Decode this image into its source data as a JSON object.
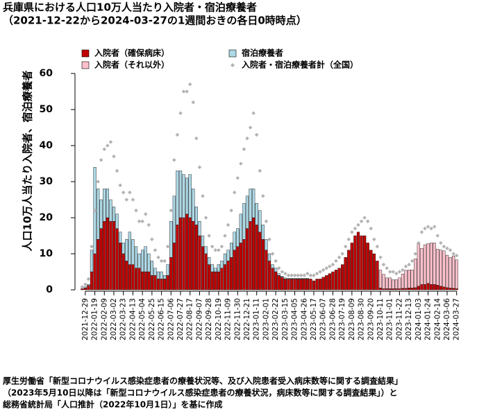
{
  "chart_data": {
    "type": "bar",
    "stacked": true,
    "title": "兵庫県における人口10万人当たり入院者・宿泊療養者",
    "subtitle": "（2021-12-22から2024-03-27の1週間おきの各日0時時点）",
    "y_label": "人口10万人当たり入院者、宿泊療養者",
    "source": [
      "厚生労働省「新型コロナウイルス感染症患者の療養状況等、及び入院患者受入病床数等に関する調査結果」",
      "（2023年5月10日以降は「新型コロナウイルス感染症患者の療養状況，病床数等に関する調査結果」）と",
      "総務省統計局「人口推計（2022年10月1日）」を基に作成"
    ],
    "legend": "top",
    "ylim": [
      0,
      60
    ],
    "yticks": [
      0,
      10,
      20,
      30,
      40,
      50,
      60
    ],
    "categories": [
      null,
      "2021-12-29",
      null,
      null,
      "2022-01-19",
      null,
      null,
      "2022-02-09",
      null,
      null,
      "2022-03-02",
      null,
      null,
      "2022-03-23",
      null,
      null,
      "2022-04-13",
      null,
      null,
      "2022-05-04",
      null,
      null,
      "2022-05-25",
      null,
      null,
      "2022-06-15",
      null,
      null,
      "2022-07-06",
      null,
      null,
      "2022-07-27",
      null,
      null,
      "2022-08-17",
      null,
      null,
      "2022-09-07",
      null,
      null,
      "2022-09-28",
      null,
      null,
      "2022-10-19",
      null,
      null,
      "2022-11-09",
      null,
      null,
      "2022-11-30",
      null,
      null,
      "2022-12-21",
      null,
      null,
      "2023-01-11",
      null,
      null,
      "2023-02-01",
      null,
      null,
      "2023-02-22",
      null,
      null,
      "2023-03-15",
      null,
      null,
      "2023-04-05",
      null,
      null,
      "2023-04-26",
      null,
      null,
      "2023-05-17",
      null,
      null,
      "2023-06-07",
      null,
      null,
      "2023-06-28",
      null,
      null,
      "2023-07-19",
      null,
      null,
      "2023-08-09",
      null,
      null,
      "2023-08-30",
      null,
      null,
      "2023-09-20",
      null,
      null,
      "2023-10-11",
      null,
      null,
      "2023-11-01",
      null,
      null,
      "2023-11-22",
      null,
      null,
      "2023-12-13",
      null,
      null,
      "2024-01-03",
      null,
      null,
      "2024-01-24",
      null,
      null,
      "2024-02-14",
      null,
      null,
      "2024-03-06",
      null,
      null,
      "2024-03-27"
    ],
    "series": [
      {
        "name": "入院者（確保病床）",
        "type": "bar",
        "color": "#c00000",
        "values": [
          0.3,
          0.5,
          1.2,
          5,
          10,
          14,
          17,
          19,
          20,
          19,
          19,
          17,
          13,
          10,
          8,
          7,
          7,
          6,
          6,
          5,
          5,
          5,
          4,
          4,
          3,
          3,
          3,
          4,
          9,
          13,
          18,
          20,
          20,
          21,
          20,
          19,
          18,
          15,
          12,
          10,
          7,
          5,
          5,
          5,
          6,
          7,
          8,
          9,
          11,
          12,
          13,
          14,
          17,
          19,
          20,
          18,
          16,
          14,
          11,
          8,
          6,
          5,
          4,
          3.5,
          3,
          3,
          3,
          3,
          3,
          3,
          3,
          3,
          3,
          2.5,
          3,
          3,
          3.5,
          4,
          4.5,
          5,
          5.5,
          6,
          7,
          9,
          11,
          13,
          15,
          16,
          15,
          15,
          13,
          11,
          10,
          8,
          0.5,
          0.3,
          0.3,
          0.3,
          0.3,
          0.3,
          0.3,
          0.4,
          0.4,
          0.5,
          0.5,
          0.6,
          1,
          1.5,
          1.5,
          1.8,
          1.5,
          1.5,
          1.3,
          1,
          0.8,
          0.6,
          0.5,
          0.4,
          0.3
        ]
      },
      {
        "name": "宿泊療養者",
        "type": "bar",
        "color": "#add8e6",
        "values": [
          0,
          0.3,
          0.3,
          6,
          24,
          14,
          8,
          9,
          8,
          6,
          4,
          4,
          3,
          3,
          6,
          9,
          7,
          6,
          4,
          6,
          7,
          5,
          4,
          2,
          2,
          2,
          1,
          3,
          10,
          13,
          15,
          13,
          12,
          10,
          12,
          9,
          5,
          4,
          3,
          2,
          2,
          2,
          1,
          2,
          2,
          3,
          3,
          4,
          5,
          5,
          8,
          10,
          9,
          9,
          8,
          6,
          6,
          4,
          3,
          2,
          1,
          1,
          0.5,
          0.3,
          0.3,
          0.2,
          0.2,
          0.2,
          0.2,
          0.2,
          0.2,
          0.2,
          0,
          0,
          0,
          0,
          0,
          0,
          0,
          0,
          0,
          0,
          0,
          0,
          0,
          0,
          0,
          0,
          0,
          0,
          0,
          0,
          0,
          0,
          0,
          0,
          0,
          0,
          0,
          0,
          0,
          0,
          0,
          0,
          0,
          0,
          0,
          0,
          0,
          0,
          0,
          0,
          0,
          0,
          0,
          0,
          0,
          0,
          0
        ]
      },
      {
        "name": "入院者（それ以外）",
        "type": "bar",
        "color": "#ffc0cb",
        "values": [
          0,
          0,
          0,
          0,
          0,
          0,
          0,
          0,
          0,
          0,
          0,
          0,
          0,
          0,
          0,
          0,
          0,
          0,
          0,
          0,
          0,
          0,
          0,
          0,
          0,
          0,
          0,
          0,
          0,
          0,
          0,
          0,
          0,
          0,
          0,
          0,
          0,
          0,
          0,
          0,
          0,
          0,
          0,
          0,
          0,
          0,
          0,
          0,
          0,
          0,
          0,
          0,
          0,
          0,
          0,
          0,
          0,
          0,
          0,
          0,
          0,
          0,
          0,
          0,
          0,
          0,
          0,
          0,
          0,
          0,
          0,
          0,
          0,
          0,
          0,
          0,
          0,
          0,
          0,
          0,
          0,
          0,
          0,
          0,
          0,
          0,
          0,
          0,
          0,
          0,
          0,
          0,
          0,
          0,
          5,
          4,
          3,
          3,
          2.5,
          2.5,
          3,
          4,
          5,
          5,
          5,
          8,
          12,
          10,
          11,
          11,
          11.5,
          11.5,
          10,
          10,
          10,
          9,
          8.5,
          9,
          8
        ]
      },
      {
        "name": "入院者・宿泊療養者計（全国）",
        "type": "scatter",
        "color": "#b3b3b3",
        "values": [
          0.8,
          1.5,
          3,
          12,
          22,
          30,
          36,
          39,
          40,
          41,
          37,
          33,
          29,
          27,
          25,
          27,
          25,
          22,
          19,
          19,
          21,
          18,
          14,
          11,
          9,
          8,
          8,
          12,
          22,
          36,
          43,
          49,
          55,
          55,
          57,
          52,
          42,
          34,
          26,
          20,
          15,
          12,
          11,
          11,
          12,
          15,
          18,
          22,
          27,
          31,
          35,
          39,
          42,
          45,
          49,
          43,
          33,
          26,
          19,
          14,
          10,
          8,
          6,
          5,
          4.5,
          4,
          4,
          4,
          4,
          4,
          4,
          4.5,
          4,
          4,
          4.5,
          5,
          5.5,
          6,
          6.5,
          7,
          8,
          9,
          10,
          12,
          14,
          16,
          17,
          18,
          19,
          20,
          19,
          17,
          14,
          12,
          9,
          7,
          6,
          5,
          5,
          4.5,
          5,
          5.5,
          6.5,
          7,
          8,
          10,
          13,
          16,
          17,
          17.5,
          17,
          17.5,
          15,
          13,
          12,
          11.5,
          11,
          10,
          9.5
        ]
      }
    ]
  }
}
